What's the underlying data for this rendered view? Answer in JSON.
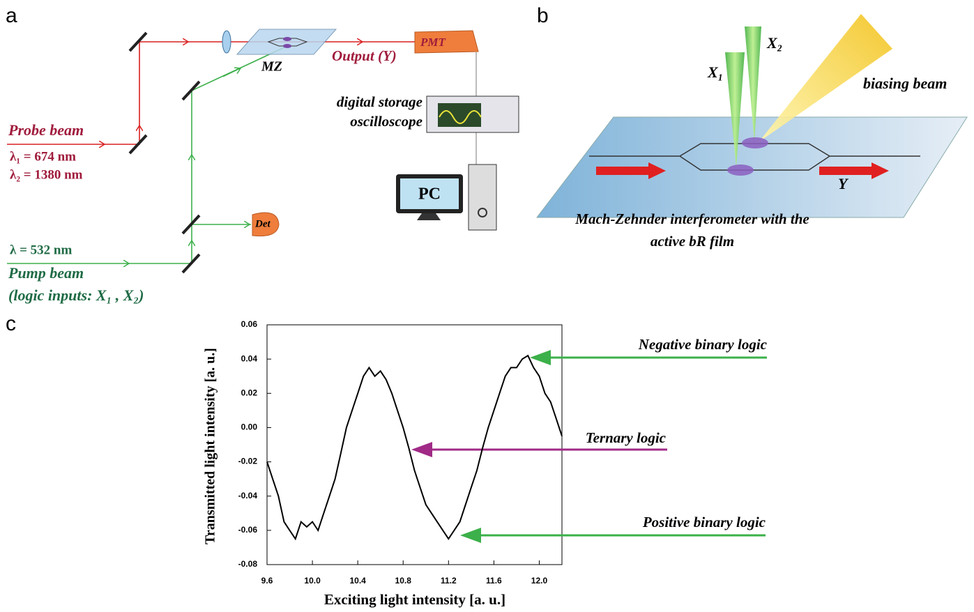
{
  "panel_labels": [
    "a",
    "b",
    "c"
  ],
  "panel_a": {
    "probe_beam": "Probe beam",
    "lambda_1": "λ₁ = 674 nm",
    "lambda_2": "λ₂ = 1380 nm",
    "lambda_pump": "λ = 532 nm",
    "pump_beam": "Pump beam",
    "logic_inputs": "(logic inputs: X₁ , X₂)",
    "mz": "MZ",
    "output": "Output (Y)",
    "pmt": "PMT",
    "oscilloscope_1": "digital storage",
    "oscilloscope_2": "oscilloscope",
    "pc": "PC",
    "det": "Det"
  },
  "panel_b": {
    "x1": "X₁",
    "x2": "X₂",
    "biasing_beam": "biasing beam",
    "y": "Y",
    "caption_1": "Mach-Zehnder interferometer with the",
    "caption_2": "active bR film"
  },
  "chart_data": {
    "type": "line",
    "xlabel": "Exciting light intensity [a. u.]",
    "ylabel": "Transmitted light intensity [a. u.]",
    "color": "#000000",
    "x": [
      9.6,
      9.65,
      9.7,
      9.75,
      9.8,
      9.85,
      9.9,
      9.95,
      10.0,
      10.05,
      10.1,
      10.15,
      10.2,
      10.25,
      10.3,
      10.35,
      10.4,
      10.45,
      10.5,
      10.55,
      10.6,
      10.65,
      10.7,
      10.75,
      10.8,
      10.85,
      10.9,
      10.95,
      11.0,
      11.05,
      11.1,
      11.15,
      11.2,
      11.25,
      11.3,
      11.35,
      11.4,
      11.45,
      11.5,
      11.55,
      11.6,
      11.65,
      11.7,
      11.75,
      11.8,
      11.85,
      11.9,
      11.95,
      12.0,
      12.05,
      12.1,
      12.15,
      12.2
    ],
    "values": [
      -0.02,
      -0.03,
      -0.04,
      -0.055,
      -0.06,
      -0.065,
      -0.055,
      -0.058,
      -0.055,
      -0.06,
      -0.05,
      -0.04,
      -0.03,
      -0.015,
      0.0,
      0.01,
      0.02,
      0.03,
      0.035,
      0.03,
      0.033,
      0.028,
      0.02,
      0.01,
      0.0,
      -0.012,
      -0.025,
      -0.035,
      -0.045,
      -0.05,
      -0.055,
      -0.06,
      -0.065,
      -0.06,
      -0.055,
      -0.045,
      -0.035,
      -0.025,
      -0.012,
      0.0,
      0.01,
      0.02,
      0.03,
      0.035,
      0.035,
      0.04,
      0.042,
      0.035,
      0.03,
      0.02,
      0.015,
      0.005,
      -0.005
    ],
    "xlim": [
      9.6,
      12.2
    ],
    "ylim": [
      -0.08,
      0.06
    ],
    "xticks": [
      9.6,
      {
        "value": 10,
        "label": "10.0"
      },
      10.4,
      10.8,
      11.2,
      11.6,
      {
        "value": 12,
        "label": "12.0"
      }
    ],
    "yticks": [
      -0.08,
      -0.06,
      -0.04,
      -0.02,
      {
        "value": 0,
        "label": "0.00"
      },
      0.02,
      0.04,
      0.06
    ],
    "annotations": [
      "Negative binary logic",
      "Ternary logic",
      "Positive binary logic"
    ]
  }
}
